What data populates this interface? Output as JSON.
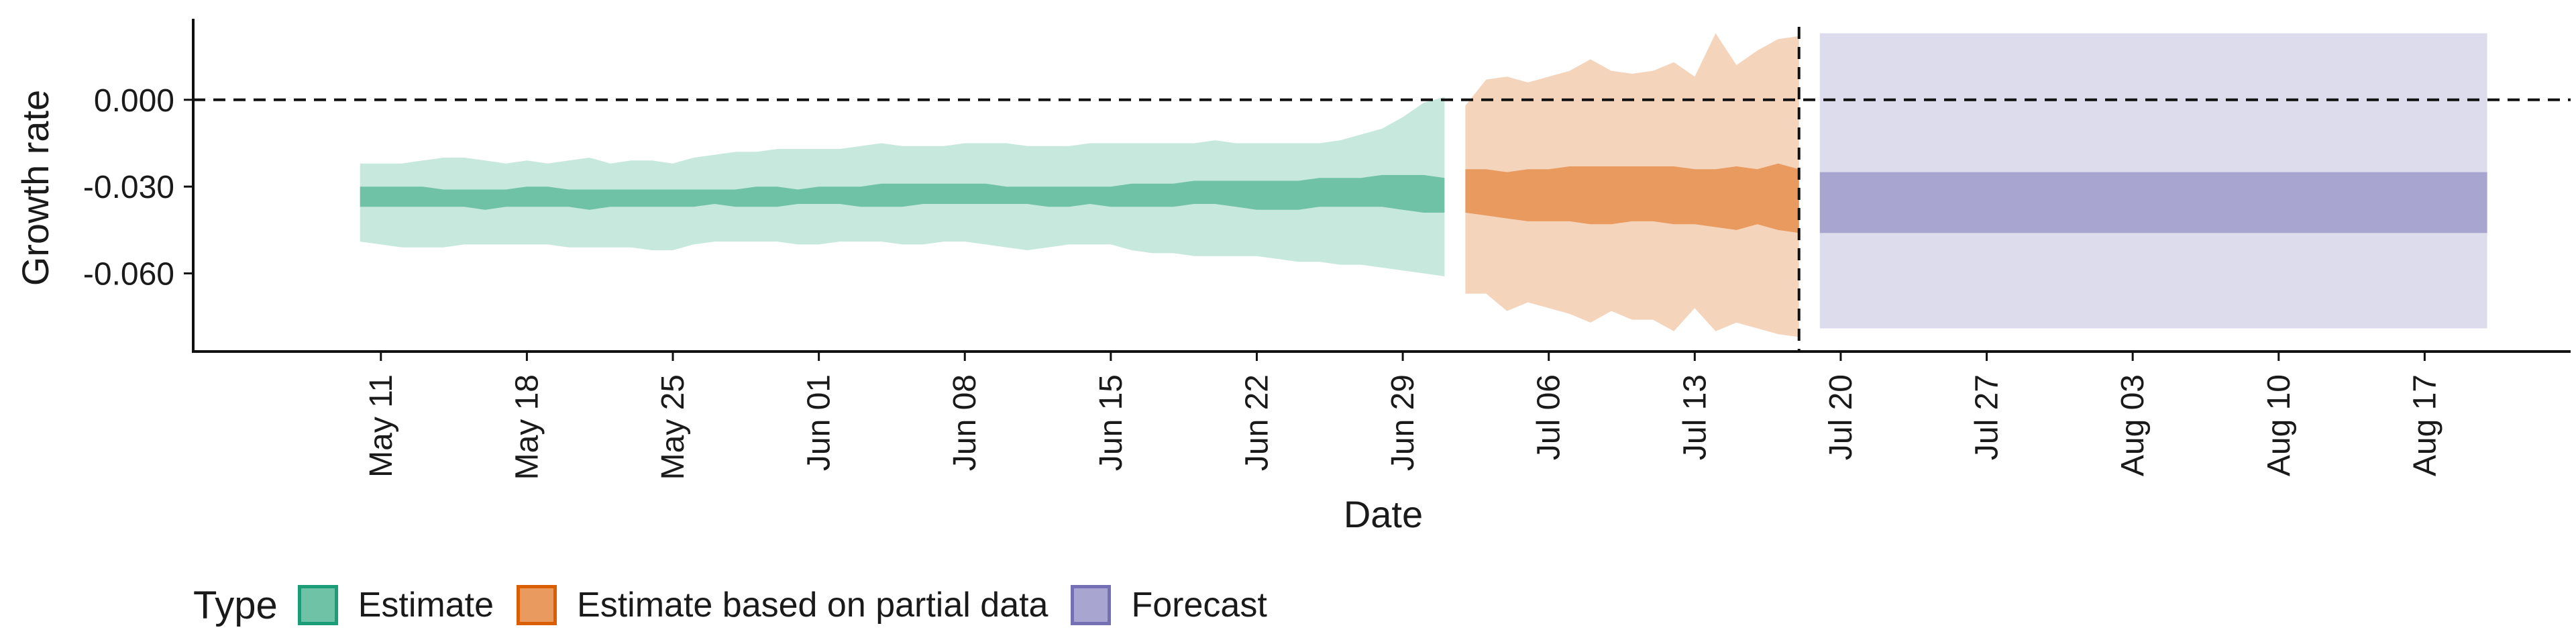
{
  "chart_data": {
    "type": "area",
    "xlabel": "Date",
    "ylabel": "Growth rate",
    "xlim": [
      "2020-05-02",
      "2020-08-24"
    ],
    "ylim": [
      -0.087,
      0.028
    ],
    "y_ticks": [
      0.0,
      -0.03,
      -0.06
    ],
    "y_tick_labels": [
      "0.000",
      "-0.030",
      "-0.060"
    ],
    "x_ticks": [
      "2020-05-11",
      "2020-05-18",
      "2020-05-25",
      "2020-06-01",
      "2020-06-08",
      "2020-06-15",
      "2020-06-22",
      "2020-06-29",
      "2020-07-06",
      "2020-07-13",
      "2020-07-20",
      "2020-07-27",
      "2020-08-03",
      "2020-08-10",
      "2020-08-17"
    ],
    "x_tick_labels": [
      "May 11",
      "May 18",
      "May 25",
      "Jun 01",
      "Jun 08",
      "Jun 15",
      "Jun 22",
      "Jun 29",
      "Jul 06",
      "Jul 13",
      "Jul 20",
      "Jul 27",
      "Aug 03",
      "Aug 10",
      "Aug 17"
    ],
    "reference_lines": {
      "horizontal_y": 0.0,
      "vertical_x": "2020-07-18"
    },
    "legend": {
      "title": "Type",
      "position": "bottom-left",
      "items": [
        {
          "label": "Estimate",
          "fill": "#6fc2a6",
          "border": "#1b9e77"
        },
        {
          "label": "Estimate based on partial data",
          "fill": "#e89a5f",
          "border": "#d95f02"
        },
        {
          "label": "Forecast",
          "fill": "#a8a5d0",
          "border": "#7570b3"
        }
      ]
    },
    "series": [
      {
        "name": "Estimate",
        "color_outer": "#c6e8dd",
        "color_inner": "#6fc2a6",
        "x": [
          "2020-05-10",
          "2020-05-11",
          "2020-05-12",
          "2020-05-13",
          "2020-05-14",
          "2020-05-15",
          "2020-05-16",
          "2020-05-17",
          "2020-05-18",
          "2020-05-19",
          "2020-05-20",
          "2020-05-21",
          "2020-05-22",
          "2020-05-23",
          "2020-05-24",
          "2020-05-25",
          "2020-05-26",
          "2020-05-27",
          "2020-05-28",
          "2020-05-29",
          "2020-05-30",
          "2020-05-31",
          "2020-06-01",
          "2020-06-02",
          "2020-06-03",
          "2020-06-04",
          "2020-06-05",
          "2020-06-06",
          "2020-06-07",
          "2020-06-08",
          "2020-06-09",
          "2020-06-10",
          "2020-06-11",
          "2020-06-12",
          "2020-06-13",
          "2020-06-14",
          "2020-06-15",
          "2020-06-16",
          "2020-06-17",
          "2020-06-18",
          "2020-06-19",
          "2020-06-20",
          "2020-06-21",
          "2020-06-22",
          "2020-06-23",
          "2020-06-24",
          "2020-06-25",
          "2020-06-26",
          "2020-06-27",
          "2020-06-28",
          "2020-06-29",
          "2020-06-30",
          "2020-07-01"
        ],
        "upper90": [
          -0.022,
          -0.022,
          -0.022,
          -0.021,
          -0.02,
          -0.02,
          -0.021,
          -0.022,
          -0.021,
          -0.022,
          -0.021,
          -0.02,
          -0.022,
          -0.021,
          -0.021,
          -0.022,
          -0.02,
          -0.019,
          -0.018,
          -0.018,
          -0.017,
          -0.017,
          -0.017,
          -0.017,
          -0.016,
          -0.015,
          -0.016,
          -0.016,
          -0.016,
          -0.015,
          -0.015,
          -0.015,
          -0.016,
          -0.016,
          -0.016,
          -0.015,
          -0.015,
          -0.015,
          -0.015,
          -0.015,
          -0.015,
          -0.014,
          -0.015,
          -0.015,
          -0.015,
          -0.015,
          -0.015,
          -0.014,
          -0.012,
          -0.01,
          -0.006,
          -0.001,
          0.001
        ],
        "upper50": [
          -0.03,
          -0.03,
          -0.03,
          -0.03,
          -0.031,
          -0.031,
          -0.031,
          -0.031,
          -0.03,
          -0.03,
          -0.031,
          -0.031,
          -0.031,
          -0.031,
          -0.031,
          -0.031,
          -0.031,
          -0.031,
          -0.031,
          -0.03,
          -0.03,
          -0.031,
          -0.03,
          -0.03,
          -0.03,
          -0.029,
          -0.029,
          -0.029,
          -0.029,
          -0.029,
          -0.029,
          -0.03,
          -0.03,
          -0.03,
          -0.03,
          -0.03,
          -0.03,
          -0.029,
          -0.029,
          -0.029,
          -0.028,
          -0.028,
          -0.028,
          -0.028,
          -0.028,
          -0.028,
          -0.027,
          -0.027,
          -0.027,
          -0.026,
          -0.026,
          -0.026,
          -0.027
        ],
        "lower50": [
          -0.037,
          -0.037,
          -0.037,
          -0.037,
          -0.037,
          -0.037,
          -0.038,
          -0.037,
          -0.037,
          -0.037,
          -0.037,
          -0.038,
          -0.037,
          -0.037,
          -0.037,
          -0.037,
          -0.037,
          -0.036,
          -0.037,
          -0.037,
          -0.037,
          -0.036,
          -0.036,
          -0.036,
          -0.037,
          -0.037,
          -0.037,
          -0.036,
          -0.036,
          -0.036,
          -0.036,
          -0.036,
          -0.036,
          -0.037,
          -0.037,
          -0.036,
          -0.037,
          -0.037,
          -0.037,
          -0.037,
          -0.036,
          -0.036,
          -0.037,
          -0.038,
          -0.038,
          -0.038,
          -0.037,
          -0.037,
          -0.037,
          -0.037,
          -0.038,
          -0.039,
          -0.039
        ],
        "lower90": [
          -0.049,
          -0.05,
          -0.051,
          -0.051,
          -0.051,
          -0.05,
          -0.05,
          -0.05,
          -0.05,
          -0.05,
          -0.051,
          -0.051,
          -0.051,
          -0.051,
          -0.052,
          -0.052,
          -0.05,
          -0.049,
          -0.049,
          -0.049,
          -0.049,
          -0.05,
          -0.05,
          -0.049,
          -0.049,
          -0.049,
          -0.05,
          -0.05,
          -0.049,
          -0.049,
          -0.05,
          -0.051,
          -0.052,
          -0.051,
          -0.05,
          -0.05,
          -0.05,
          -0.052,
          -0.053,
          -0.053,
          -0.054,
          -0.054,
          -0.054,
          -0.054,
          -0.055,
          -0.056,
          -0.056,
          -0.057,
          -0.057,
          -0.058,
          -0.059,
          -0.06,
          -0.061
        ]
      },
      {
        "name": "Estimate based on partial data",
        "color_outer": "#f5d4bc",
        "color_inner": "#e89a5f",
        "x": [
          "2020-07-02",
          "2020-07-03",
          "2020-07-04",
          "2020-07-05",
          "2020-07-06",
          "2020-07-07",
          "2020-07-08",
          "2020-07-09",
          "2020-07-10",
          "2020-07-11",
          "2020-07-12",
          "2020-07-13",
          "2020-07-14",
          "2020-07-15",
          "2020-07-16",
          "2020-07-17",
          "2020-07-18"
        ],
        "upper90": [
          -0.002,
          0.007,
          0.008,
          0.006,
          0.008,
          0.01,
          0.014,
          0.01,
          0.009,
          0.01,
          0.013,
          0.008,
          0.023,
          0.012,
          0.017,
          0.021,
          0.022
        ],
        "upper50": [
          -0.024,
          -0.024,
          -0.025,
          -0.024,
          -0.024,
          -0.023,
          -0.023,
          -0.023,
          -0.023,
          -0.023,
          -0.023,
          -0.024,
          -0.024,
          -0.023,
          -0.024,
          -0.022,
          -0.024
        ],
        "lower50": [
          -0.039,
          -0.04,
          -0.041,
          -0.042,
          -0.042,
          -0.042,
          -0.043,
          -0.043,
          -0.042,
          -0.042,
          -0.043,
          -0.043,
          -0.044,
          -0.045,
          -0.043,
          -0.045,
          -0.046
        ],
        "lower90": [
          -0.067,
          -0.067,
          -0.073,
          -0.07,
          -0.072,
          -0.074,
          -0.077,
          -0.073,
          -0.076,
          -0.076,
          -0.08,
          -0.072,
          -0.08,
          -0.077,
          -0.079,
          -0.081,
          -0.082
        ]
      },
      {
        "name": "Forecast",
        "color_outer": "#dddcec",
        "color_inner": "#a8a5d0",
        "x": [
          "2020-07-19",
          "2020-08-20"
        ],
        "upper90": [
          0.023,
          0.023
        ],
        "upper50": [
          -0.025,
          -0.025
        ],
        "lower50": [
          -0.046,
          -0.046
        ],
        "lower90": [
          -0.079,
          -0.079
        ]
      }
    ]
  }
}
